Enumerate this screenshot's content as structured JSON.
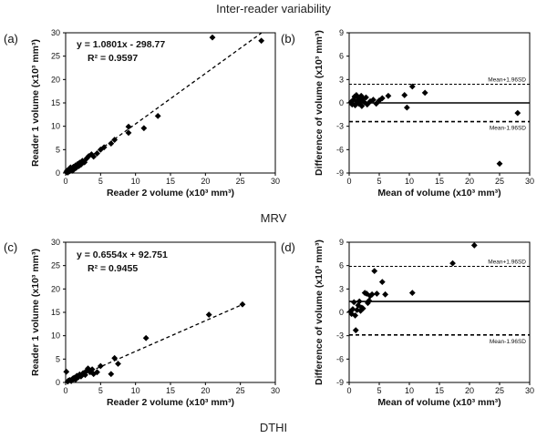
{
  "figure_title": "Inter-reader variability",
  "group_labels": [
    "MRV",
    "DTHI"
  ],
  "chart_data": [
    {
      "panel": "(a)",
      "type": "scatter",
      "xlabel": "Reader 2 volume (x10³ mm³)",
      "ylabel": "Reader 1 volume (x10³ mm³)",
      "xlim": [
        0,
        30
      ],
      "ylim": [
        0,
        30
      ],
      "xticks": [
        0,
        5,
        10,
        15,
        20,
        25,
        30
      ],
      "yticks": [
        0,
        5,
        10,
        15,
        20,
        25,
        30
      ],
      "trendline": {
        "slope": 1.0801,
        "intercept": -0.29877,
        "x_range": [
          0.3,
          28
        ]
      },
      "annotations": [
        "y = 1.0801x - 298.77",
        "R² = 0.9597"
      ],
      "points": [
        [
          0.1,
          0.2
        ],
        [
          0.2,
          0.5
        ],
        [
          0.3,
          0.1
        ],
        [
          0.4,
          0.3
        ],
        [
          0.5,
          0.8
        ],
        [
          0.6,
          0.4
        ],
        [
          0.7,
          1.2
        ],
        [
          0.8,
          0.6
        ],
        [
          0.9,
          0.9
        ],
        [
          1.0,
          0.5
        ],
        [
          1.1,
          1.3
        ],
        [
          1.2,
          0.8
        ],
        [
          1.4,
          1.6
        ],
        [
          1.5,
          1.1
        ],
        [
          1.7,
          1.9
        ],
        [
          1.9,
          1.5
        ],
        [
          2.0,
          2.2
        ],
        [
          2.2,
          1.8
        ],
        [
          2.4,
          2.6
        ],
        [
          2.7,
          2.3
        ],
        [
          3.0,
          3.1
        ],
        [
          3.3,
          3.6
        ],
        [
          3.7,
          4.0
        ],
        [
          4.0,
          3.5
        ],
        [
          4.5,
          4.2
        ],
        [
          5.0,
          5.0
        ],
        [
          5.5,
          5.5
        ],
        [
          6.5,
          6.3
        ],
        [
          7.0,
          7.1
        ],
        [
          9.0,
          8.6
        ],
        [
          9.0,
          9.9
        ],
        [
          11.2,
          9.6
        ],
        [
          13.2,
          12.2
        ],
        [
          21.0,
          29.0
        ],
        [
          28.0,
          28.3
        ]
      ]
    },
    {
      "panel": "(b)",
      "type": "scatter",
      "xlabel": "Mean of volume (x10³ mm³)",
      "ylabel": "Difference of volume (x10³ mm³)",
      "xlim": [
        0,
        30
      ],
      "ylim": [
        -9,
        9
      ],
      "xticks": [
        0,
        5,
        10,
        15,
        20,
        25,
        30
      ],
      "yticks": [
        -9,
        -6,
        -3,
        0,
        3,
        6,
        9
      ],
      "mean_line": 0,
      "upper_limit": {
        "value": 2.4,
        "label": "Mean+1.96SD"
      },
      "lower_limit": {
        "value": -2.4,
        "label": "Mean-1.96SD"
      },
      "points": [
        [
          0.3,
          0.1
        ],
        [
          0.5,
          -0.2
        ],
        [
          0.7,
          0.4
        ],
        [
          0.9,
          0.8
        ],
        [
          1.0,
          -0.3
        ],
        [
          1.2,
          1.0
        ],
        [
          1.3,
          0.2
        ],
        [
          1.5,
          0.6
        ],
        [
          1.6,
          -0.1
        ],
        [
          1.8,
          0.3
        ],
        [
          2.0,
          0.9
        ],
        [
          2.1,
          -0.4
        ],
        [
          2.3,
          0.5
        ],
        [
          2.5,
          0.1
        ],
        [
          2.8,
          0.7
        ],
        [
          3.0,
          -0.2
        ],
        [
          3.5,
          0.2
        ],
        [
          4.0,
          0.4
        ],
        [
          4.5,
          -0.1
        ],
        [
          5.0,
          0.3
        ],
        [
          5.5,
          0.6
        ],
        [
          6.5,
          0.9
        ],
        [
          9.2,
          1.0
        ],
        [
          9.6,
          -0.6
        ],
        [
          10.5,
          2.1
        ],
        [
          12.6,
          1.3
        ],
        [
          25.0,
          -7.8
        ],
        [
          28.0,
          -1.3
        ]
      ]
    },
    {
      "panel": "(c)",
      "type": "scatter",
      "xlabel": "Reader 2 volume (x10³ mm³)",
      "ylabel": "Reader 1 volume (x10³ mm³)",
      "xlim": [
        0,
        30
      ],
      "ylim": [
        0,
        30
      ],
      "xticks": [
        0,
        5,
        10,
        15,
        20,
        25,
        30
      ],
      "yticks": [
        0,
        5,
        10,
        15,
        20,
        25,
        30
      ],
      "trendline": {
        "slope": 0.6554,
        "intercept": 0.092751,
        "x_range": [
          0.2,
          25.5
        ]
      },
      "annotations": [
        "y = 0.6554x + 92.751",
        "R² = 0.9455"
      ],
      "points": [
        [
          0.1,
          2.3
        ],
        [
          0.3,
          0.2
        ],
        [
          0.4,
          0.4
        ],
        [
          0.6,
          0.5
        ],
        [
          0.8,
          0.3
        ],
        [
          1.0,
          0.8
        ],
        [
          1.2,
          1.0
        ],
        [
          1.4,
          0.6
        ],
        [
          1.6,
          1.4
        ],
        [
          1.8,
          1.1
        ],
        [
          2.0,
          1.7
        ],
        [
          2.2,
          1.3
        ],
        [
          2.5,
          2.0
        ],
        [
          2.8,
          1.6
        ],
        [
          3.0,
          2.5
        ],
        [
          3.2,
          3.0
        ],
        [
          3.5,
          2.2
        ],
        [
          3.8,
          2.8
        ],
        [
          4.0,
          1.8
        ],
        [
          4.5,
          2.2
        ],
        [
          5.0,
          3.5
        ],
        [
          6.5,
          1.8
        ],
        [
          7.0,
          5.2
        ],
        [
          7.5,
          4.0
        ],
        [
          11.5,
          9.5
        ],
        [
          20.5,
          14.5
        ],
        [
          25.3,
          16.7
        ]
      ]
    },
    {
      "panel": "(d)",
      "type": "scatter",
      "xlabel": "Mean of volume (x10³ mm³)",
      "ylabel": "Difference of volume (x10³ mm³)",
      "xlim": [
        0,
        30
      ],
      "ylim": [
        -9,
        9
      ],
      "xticks": [
        0,
        5,
        10,
        15,
        20,
        25,
        30
      ],
      "yticks": [
        -9,
        -6,
        -3,
        0,
        3,
        6,
        9
      ],
      "mean_line": 1.4,
      "upper_limit": {
        "value": 5.9,
        "label": "Mean+1.96SD"
      },
      "lower_limit": {
        "value": -2.9,
        "label": "Mean-1.96SD"
      },
      "points": [
        [
          0.2,
          0.1
        ],
        [
          0.4,
          -0.2
        ],
        [
          0.6,
          0.4
        ],
        [
          0.8,
          1.3
        ],
        [
          1.0,
          -0.4
        ],
        [
          1.1,
          -2.3
        ],
        [
          1.3,
          0.3
        ],
        [
          1.5,
          0.9
        ],
        [
          1.7,
          1.4
        ],
        [
          1.9,
          0.2
        ],
        [
          2.1,
          0.6
        ],
        [
          2.3,
          0.5
        ],
        [
          2.6,
          2.5
        ],
        [
          2.9,
          2.4
        ],
        [
          3.1,
          1.2
        ],
        [
          3.3,
          1.5
        ],
        [
          3.5,
          2.1
        ],
        [
          3.8,
          2.3
        ],
        [
          4.2,
          5.3
        ],
        [
          4.6,
          2.4
        ],
        [
          5.5,
          3.9
        ],
        [
          6.0,
          2.3
        ],
        [
          10.5,
          2.5
        ],
        [
          17.2,
          6.3
        ],
        [
          20.8,
          8.6
        ]
      ]
    }
  ]
}
